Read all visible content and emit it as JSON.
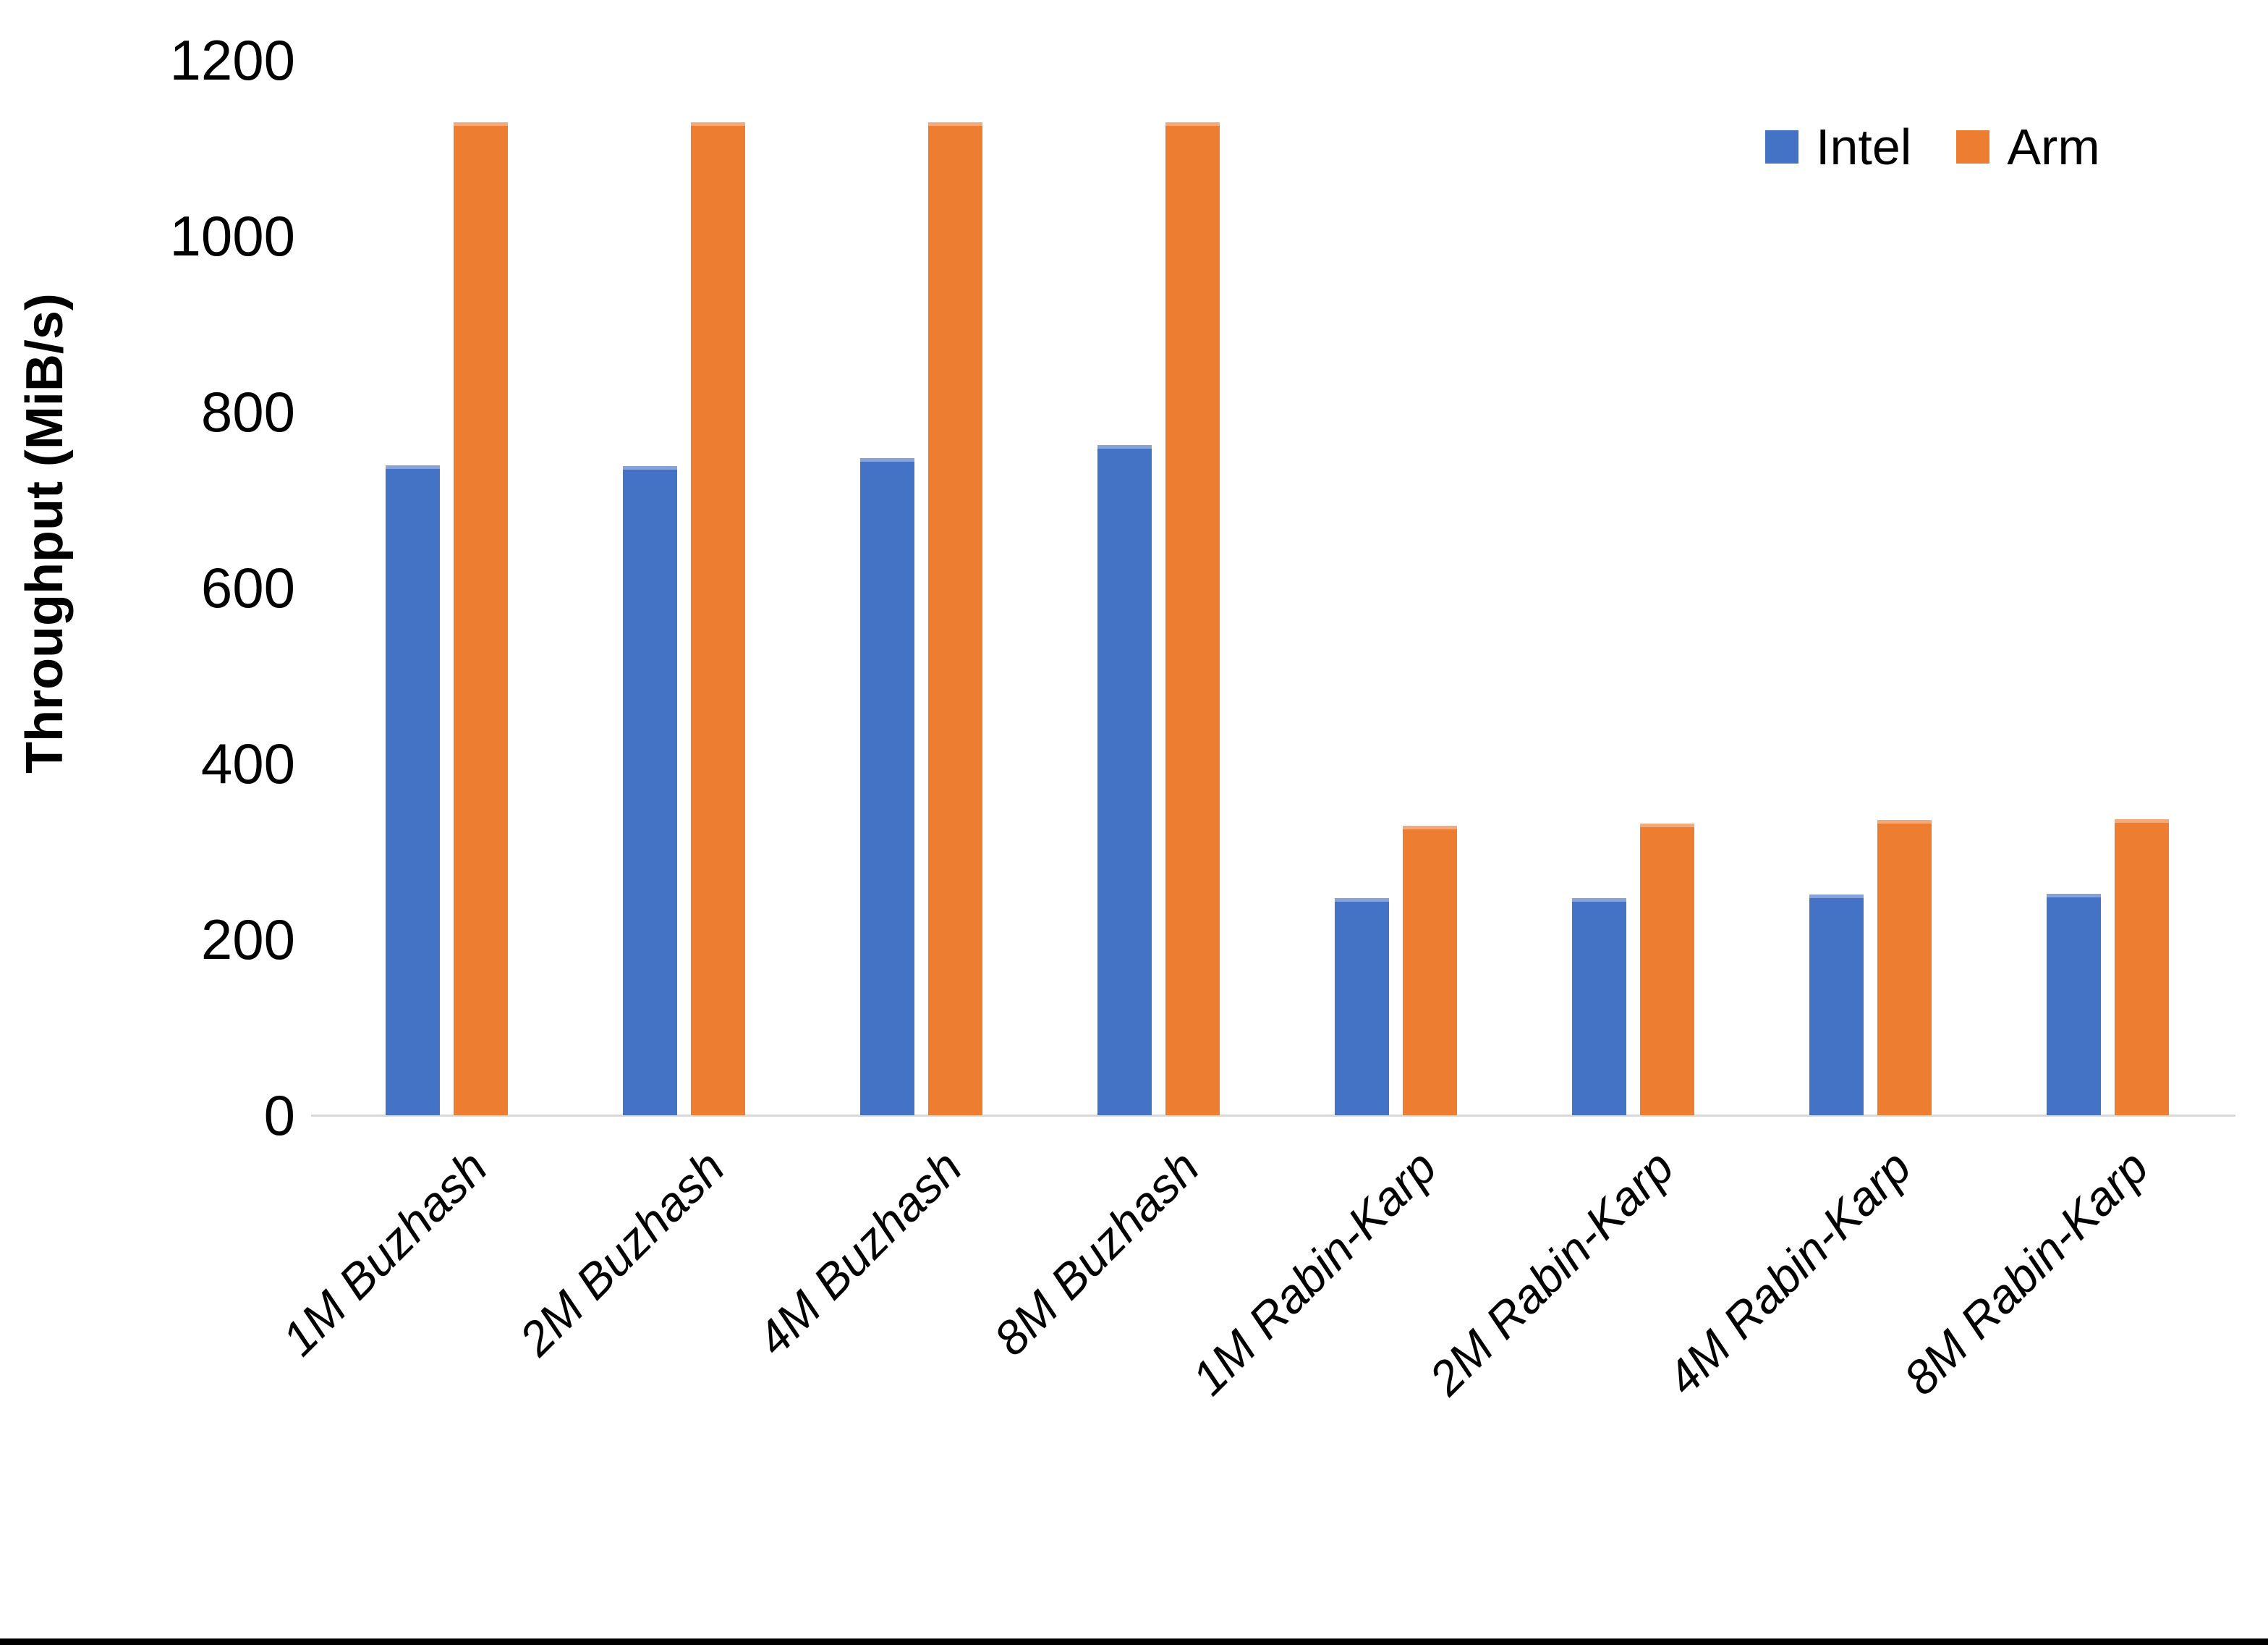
{
  "chart_data": {
    "type": "bar",
    "title": "",
    "xlabel": "",
    "ylabel": "Throughput (MiB/s)",
    "ylim": [
      0,
      1200
    ],
    "yticks": [
      0,
      200,
      400,
      600,
      800,
      1000,
      1200
    ],
    "grid": false,
    "legend_position": "top-right",
    "categories": [
      "1M Buzhash",
      "2M Buzhash",
      "4M Buzhash",
      "8M Buzhash",
      "1M Rabin-Karp",
      "2M Rabin-Karp",
      "4M Rabin-Karp",
      "8M Rabin-Karp"
    ],
    "series": [
      {
        "name": "Intel",
        "color": "#4472C4",
        "values": [
          739,
          738,
          747,
          762,
          247,
          247,
          251,
          252
        ]
      },
      {
        "name": "Arm",
        "color": "#ED7D31",
        "values": [
          1129,
          1129,
          1129,
          1129,
          329,
          332,
          336,
          337
        ]
      }
    ]
  },
  "colors": {
    "axis_line": "#D9D9D9",
    "text": "#000000",
    "background": "#FFFFFF",
    "bottom_border": "#000000"
  }
}
